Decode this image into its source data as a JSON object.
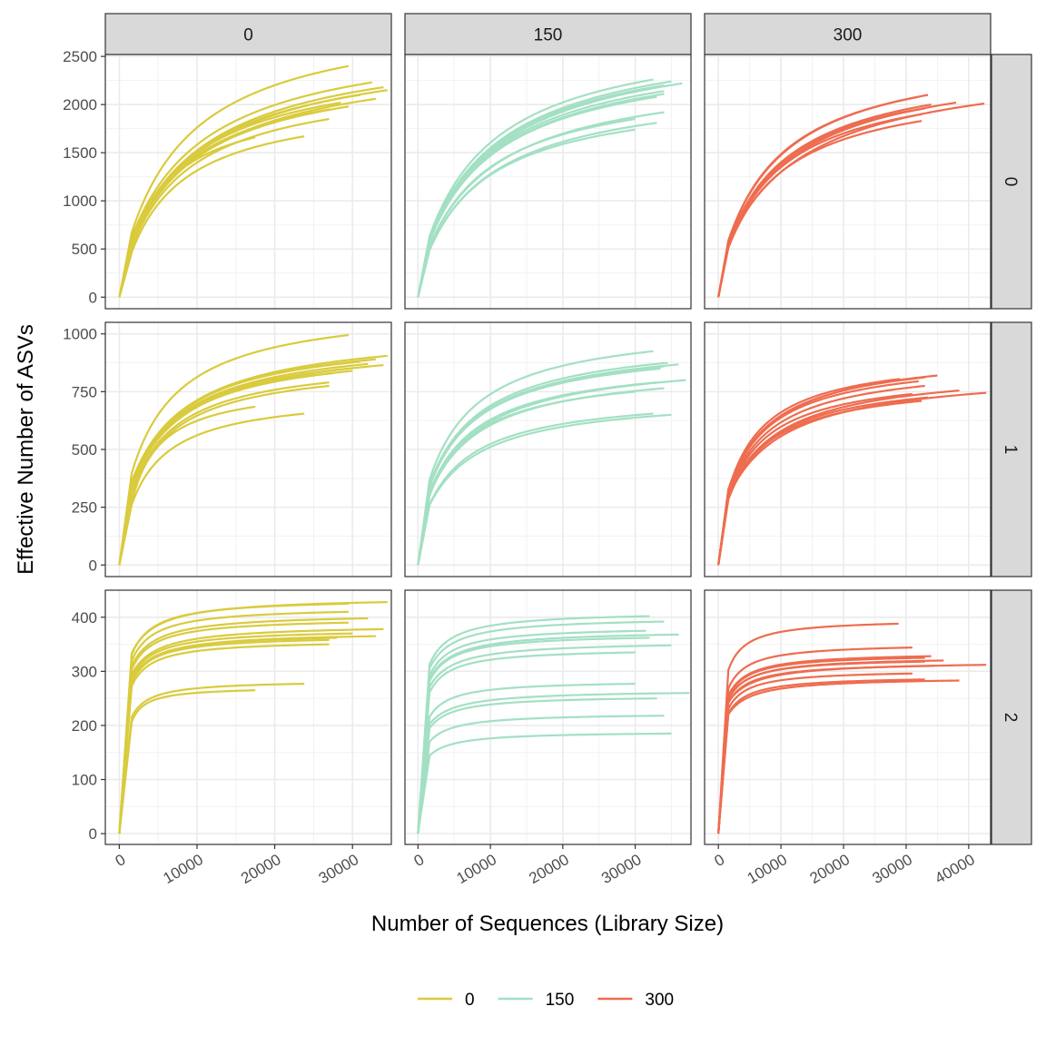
{
  "chart_data": {
    "type": "line",
    "xlabel": "Number of Sequences (Library Size)",
    "ylabel": "Effective Number of ASVs",
    "facet_cols": [
      "0",
      "150",
      "300"
    ],
    "facet_rows": [
      "0",
      "1",
      "2"
    ],
    "legend": {
      "position": "bottom",
      "entries": [
        {
          "label": "0",
          "color": "#D9CB3D"
        },
        {
          "label": "150",
          "color": "#A3E0C3"
        },
        {
          "label": "300",
          "color": "#EE6C4F"
        }
      ]
    },
    "x_axes": [
      {
        "xlim": [
          -1800,
          35000
        ],
        "ticks": [
          0,
          10000,
          20000,
          30000
        ],
        "tick_labels": [
          "0",
          "10000",
          "20000",
          "30000"
        ]
      },
      {
        "xlim": [
          -1800,
          37700
        ],
        "ticks": [
          0,
          10000,
          20000,
          30000
        ],
        "tick_labels": [
          "0",
          "10000",
          "20000",
          "30000"
        ]
      },
      {
        "xlim": [
          -2200,
          43500
        ],
        "ticks": [
          0,
          10000,
          20000,
          30000,
          40000
        ],
        "tick_labels": [
          "0",
          "10000",
          "20000",
          "30000",
          "40000"
        ]
      }
    ],
    "y_axes": [
      {
        "ylim": [
          -120,
          2520
        ],
        "ticks": [
          0,
          500,
          1000,
          1500,
          2000,
          2500
        ],
        "tick_labels": [
          "0",
          "500",
          "1000",
          "1500",
          "2000",
          "2500"
        ]
      },
      {
        "ylim": [
          -50,
          1050
        ],
        "ticks": [
          0,
          250,
          500,
          750,
          1000
        ],
        "tick_labels": [
          "0",
          "250",
          "500",
          "750",
          "1000"
        ]
      },
      {
        "ylim": [
          -20,
          450
        ],
        "ticks": [
          0,
          100,
          200,
          300,
          400
        ],
        "tick_labels": [
          "0",
          "100",
          "200",
          "300",
          "400"
        ]
      }
    ],
    "grid": true,
    "panels": [
      {
        "row": "0",
        "col": "0",
        "series_color": "#D9CB3D",
        "curves": [
          {
            "end_x": 29500,
            "end_y": 2400
          },
          {
            "end_x": 32500,
            "end_y": 2230
          },
          {
            "end_x": 34000,
            "end_y": 2180
          },
          {
            "end_x": 34500,
            "end_y": 2150
          },
          {
            "end_x": 31000,
            "end_y": 2100
          },
          {
            "end_x": 33000,
            "end_y": 2060
          },
          {
            "end_x": 28500,
            "end_y": 2020
          },
          {
            "end_x": 29500,
            "end_y": 1980
          },
          {
            "end_x": 27000,
            "end_y": 1950
          },
          {
            "end_x": 27000,
            "end_y": 1850
          },
          {
            "end_x": 17500,
            "end_y": 1660
          },
          {
            "end_x": 23800,
            "end_y": 1670
          }
        ]
      },
      {
        "row": "0",
        "col": "150",
        "series_color": "#A3E0C3",
        "curves": [
          {
            "end_x": 32500,
            "end_y": 2260
          },
          {
            "end_x": 36500,
            "end_y": 2220
          },
          {
            "end_x": 35000,
            "end_y": 2240
          },
          {
            "end_x": 34000,
            "end_y": 2200
          },
          {
            "end_x": 34000,
            "end_y": 2140
          },
          {
            "end_x": 34000,
            "end_y": 2110
          },
          {
            "end_x": 33000,
            "end_y": 2080
          },
          {
            "end_x": 34000,
            "end_y": 1920
          },
          {
            "end_x": 30000,
            "end_y": 1850
          },
          {
            "end_x": 33000,
            "end_y": 1810
          },
          {
            "end_x": 30000,
            "end_y": 1740
          }
        ]
      },
      {
        "row": "0",
        "col": "300",
        "series_color": "#EE6C4F",
        "curves": [
          {
            "end_x": 33500,
            "end_y": 2100
          },
          {
            "end_x": 32000,
            "end_y": 2080
          },
          {
            "end_x": 38000,
            "end_y": 2020
          },
          {
            "end_x": 42500,
            "end_y": 2010
          },
          {
            "end_x": 34000,
            "end_y": 2000
          },
          {
            "end_x": 33000,
            "end_y": 1960
          },
          {
            "end_x": 31000,
            "end_y": 1940
          },
          {
            "end_x": 32500,
            "end_y": 1900
          },
          {
            "end_x": 32500,
            "end_y": 1830
          }
        ]
      },
      {
        "row": "1",
        "col": "0",
        "series_color": "#D9CB3D",
        "curves": [
          {
            "end_x": 29500,
            "end_y": 995
          },
          {
            "end_x": 34500,
            "end_y": 905
          },
          {
            "end_x": 33000,
            "end_y": 890
          },
          {
            "end_x": 31000,
            "end_y": 880
          },
          {
            "end_x": 32000,
            "end_y": 870
          },
          {
            "end_x": 34000,
            "end_y": 865
          },
          {
            "end_x": 29500,
            "end_y": 850
          },
          {
            "end_x": 30000,
            "end_y": 840
          },
          {
            "end_x": 27500,
            "end_y": 830
          },
          {
            "end_x": 27000,
            "end_y": 790
          },
          {
            "end_x": 27000,
            "end_y": 775
          },
          {
            "end_x": 17500,
            "end_y": 685
          },
          {
            "end_x": 23800,
            "end_y": 655
          }
        ]
      },
      {
        "row": "1",
        "col": "150",
        "series_color": "#A3E0C3",
        "curves": [
          {
            "end_x": 32500,
            "end_y": 925
          },
          {
            "end_x": 34500,
            "end_y": 875
          },
          {
            "end_x": 36000,
            "end_y": 868
          },
          {
            "end_x": 34000,
            "end_y": 860
          },
          {
            "end_x": 33500,
            "end_y": 850
          },
          {
            "end_x": 37000,
            "end_y": 800
          },
          {
            "end_x": 33000,
            "end_y": 790
          },
          {
            "end_x": 34000,
            "end_y": 765
          },
          {
            "end_x": 30000,
            "end_y": 750
          },
          {
            "end_x": 32500,
            "end_y": 655
          },
          {
            "end_x": 35000,
            "end_y": 650
          }
        ]
      },
      {
        "row": "1",
        "col": "300",
        "series_color": "#EE6C4F",
        "curves": [
          {
            "end_x": 35000,
            "end_y": 820
          },
          {
            "end_x": 33000,
            "end_y": 812
          },
          {
            "end_x": 29000,
            "end_y": 805
          },
          {
            "end_x": 32000,
            "end_y": 795
          },
          {
            "end_x": 33000,
            "end_y": 775
          },
          {
            "end_x": 38500,
            "end_y": 755
          },
          {
            "end_x": 42800,
            "end_y": 745
          },
          {
            "end_x": 31000,
            "end_y": 740
          },
          {
            "end_x": 33500,
            "end_y": 725
          },
          {
            "end_x": 32500,
            "end_y": 710
          }
        ]
      },
      {
        "row": "2",
        "col": "0",
        "series_color": "#D9CB3D",
        "curves": [
          {
            "end_x": 34500,
            "end_y": 428
          },
          {
            "end_x": 29500,
            "end_y": 425
          },
          {
            "end_x": 29500,
            "end_y": 410
          },
          {
            "end_x": 32000,
            "end_y": 398
          },
          {
            "end_x": 29500,
            "end_y": 390
          },
          {
            "end_x": 34000,
            "end_y": 378
          },
          {
            "end_x": 30000,
            "end_y": 370
          },
          {
            "end_x": 33000,
            "end_y": 365
          },
          {
            "end_x": 28000,
            "end_y": 362
          },
          {
            "end_x": 27000,
            "end_y": 358
          },
          {
            "end_x": 27000,
            "end_y": 350
          },
          {
            "end_x": 23800,
            "end_y": 277
          },
          {
            "end_x": 17500,
            "end_y": 265
          }
        ]
      },
      {
        "row": "2",
        "col": "150",
        "series_color": "#A3E0C3",
        "curves": [
          {
            "end_x": 32000,
            "end_y": 402
          },
          {
            "end_x": 34000,
            "end_y": 392
          },
          {
            "end_x": 31500,
            "end_y": 375
          },
          {
            "end_x": 36000,
            "end_y": 368
          },
          {
            "end_x": 32000,
            "end_y": 362
          },
          {
            "end_x": 35000,
            "end_y": 348
          },
          {
            "end_x": 30000,
            "end_y": 335
          },
          {
            "end_x": 30000,
            "end_y": 277
          },
          {
            "end_x": 37500,
            "end_y": 260
          },
          {
            "end_x": 33000,
            "end_y": 250
          },
          {
            "end_x": 34000,
            "end_y": 218
          },
          {
            "end_x": 35000,
            "end_y": 185
          }
        ]
      },
      {
        "row": "2",
        "col": "300",
        "series_color": "#EE6C4F",
        "curves": [
          {
            "end_x": 28800,
            "end_y": 388
          },
          {
            "end_x": 31000,
            "end_y": 344
          },
          {
            "end_x": 34000,
            "end_y": 328
          },
          {
            "end_x": 33000,
            "end_y": 325
          },
          {
            "end_x": 36000,
            "end_y": 320
          },
          {
            "end_x": 33000,
            "end_y": 318
          },
          {
            "end_x": 42800,
            "end_y": 312
          },
          {
            "end_x": 34500,
            "end_y": 310
          },
          {
            "end_x": 31000,
            "end_y": 296
          },
          {
            "end_x": 33000,
            "end_y": 285
          },
          {
            "end_x": 38500,
            "end_y": 283
          }
        ]
      }
    ]
  }
}
